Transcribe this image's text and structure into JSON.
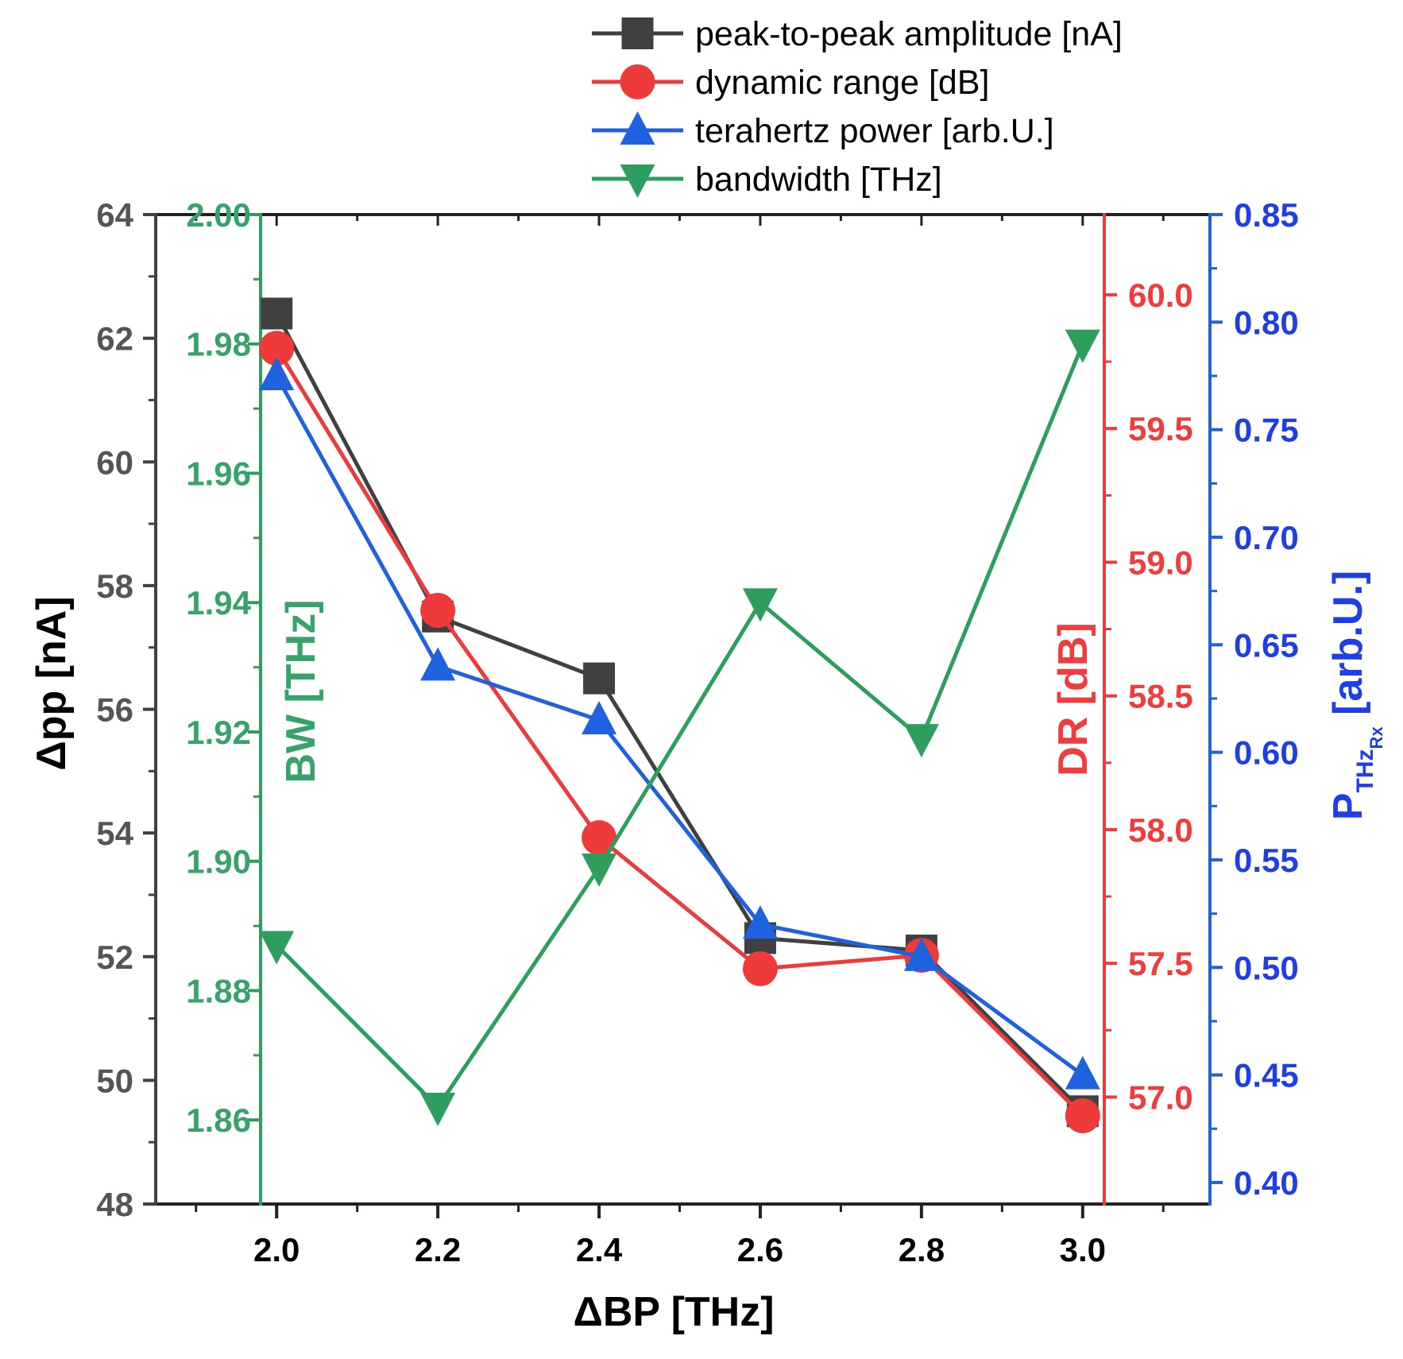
{
  "chart_data": {
    "type": "line",
    "x": [
      2.0,
      2.2,
      2.4,
      2.6,
      2.8,
      3.0
    ],
    "xlabel": "ΔBP [THz]",
    "xlim": [
      1.85,
      3.15
    ],
    "xticks": [
      "2.0",
      "2.2",
      "2.4",
      "2.6",
      "2.8",
      "3.0"
    ],
    "series": [
      {
        "name": "peak-to-peak amplitude [nA]",
        "axis": "left-dark",
        "color": "#404040",
        "marker": "square",
        "values": [
          62.4,
          57.5,
          56.5,
          52.3,
          52.1,
          49.5
        ]
      },
      {
        "name": "dynamic range [dB]",
        "axis": "right-red",
        "color": "#ee3a3a",
        "marker": "circle",
        "values": [
          59.8,
          58.82,
          57.97,
          57.48,
          57.53,
          56.93
        ]
      },
      {
        "name": "terahertz power [arb.U.]",
        "axis": "right-blue",
        "color": "#1f62e0",
        "marker": "triangle-up",
        "values": [
          0.775,
          0.64,
          0.615,
          0.52,
          0.505,
          0.45
        ]
      },
      {
        "name": "bandwidth [THz]",
        "axis": "left-green",
        "color": "#2e9e5e",
        "marker": "triangle-down",
        "values": [
          1.887,
          1.862,
          1.899,
          1.94,
          1.919,
          1.98
        ]
      }
    ],
    "axes": {
      "left_dark": {
        "label": "Δpp [nA]",
        "ylim": [
          48,
          64
        ],
        "ticks": [
          "48",
          "50",
          "52",
          "54",
          "56",
          "58",
          "60",
          "62",
          "64"
        ]
      },
      "left_green": {
        "label": "BW [THz]",
        "ylim": [
          1.847,
          2.0
        ],
        "ticks": [
          "1.86",
          "1.88",
          "1.90",
          "1.92",
          "1.94",
          "1.96",
          "1.98",
          "2.00"
        ]
      },
      "right_red": {
        "label": "DR [dB]",
        "ylim": [
          56.6,
          60.3
        ],
        "ticks": [
          "57.0",
          "57.5",
          "58.0",
          "58.5",
          "59.0",
          "59.5",
          "60.0"
        ]
      },
      "right_blue": {
        "label_main": "P",
        "label_sub1": "THz",
        "label_sub2": "Rx",
        "label_tail": " [arb.U.]",
        "ylim": [
          0.39,
          0.85
        ],
        "ticks": [
          "0.40",
          "0.45",
          "0.50",
          "0.55",
          "0.60",
          "0.65",
          "0.70",
          "0.75",
          "0.80",
          "0.85"
        ]
      }
    },
    "legend_position": "top-right",
    "grid": false
  },
  "colors": {
    "dark": "#404040",
    "green": "#2e9e5e",
    "red": "#ee3a3a",
    "blue": "#1f62e0",
    "green_text": "#37a26a",
    "blue_text": "#1e3fe6",
    "red_text": "#f03c3c"
  }
}
